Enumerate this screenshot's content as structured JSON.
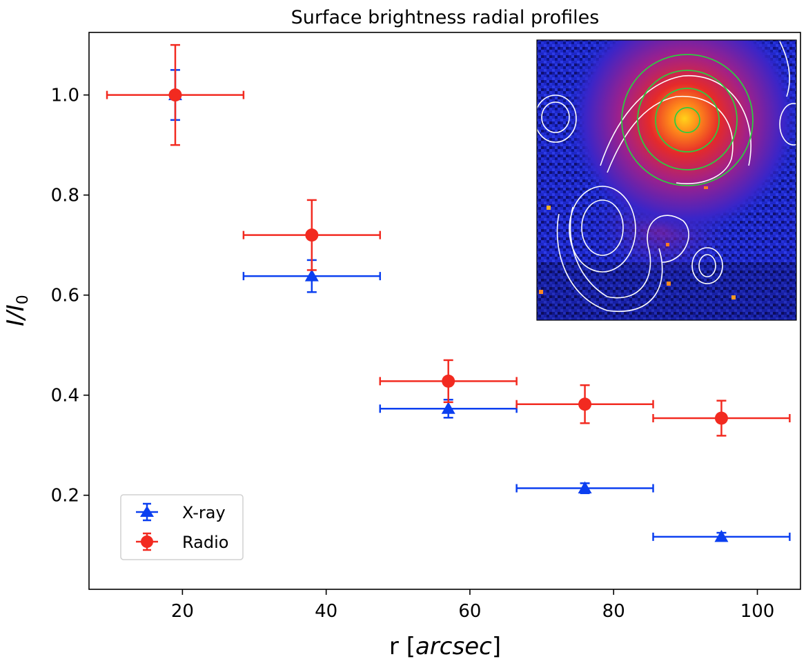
{
  "chart_data": {
    "type": "scatter",
    "title": "Surface brightness radial profiles",
    "xlabel": "r [",
    "xlabel_italic": "arcsec",
    "xlabel_end": "]",
    "ylabel_main": "I/I",
    "ylabel_sub": "0",
    "xlim": [
      7,
      106
    ],
    "ylim": [
      0.012,
      1.125
    ],
    "xticks": [
      20,
      40,
      60,
      80,
      100
    ],
    "xtick_labels": [
      "20",
      "40",
      "60",
      "80",
      "100"
    ],
    "yticks": [
      0.2,
      0.4,
      0.6,
      0.8,
      1.0
    ],
    "ytick_labels": [
      "0.2",
      "0.4",
      "0.6",
      "0.8",
      "1.0"
    ],
    "legend_position": "lower-left",
    "inset": {
      "description": "X-ray image with radio contours and annular extraction regions",
      "position": "top-right",
      "colors": {
        "background": "#1f2ad0",
        "core": "#ffd21a",
        "contour": "#ffffff",
        "annulus": "#2ecc40"
      }
    },
    "series": [
      {
        "name": "X-ray",
        "color": "#0b3ff0",
        "marker": "triangle",
        "x": [
          19,
          38,
          57,
          76,
          95
        ],
        "y": [
          1.0,
          0.638,
          0.373,
          0.214,
          0.117
        ],
        "xerr": [
          0,
          9.5,
          9.5,
          9.5,
          9.5
        ],
        "yerr": [
          0.05,
          0.032,
          0.018,
          0.01,
          0.008
        ]
      },
      {
        "name": "Radio",
        "color": "#f22a20",
        "marker": "circle",
        "x": [
          19,
          38,
          57,
          76,
          95
        ],
        "y": [
          1.0,
          0.72,
          0.428,
          0.382,
          0.354
        ],
        "xerr": [
          9.5,
          9.5,
          9.5,
          9.5,
          9.5
        ],
        "yerr": [
          0.1,
          0.07,
          0.042,
          0.038,
          0.035
        ]
      }
    ]
  }
}
